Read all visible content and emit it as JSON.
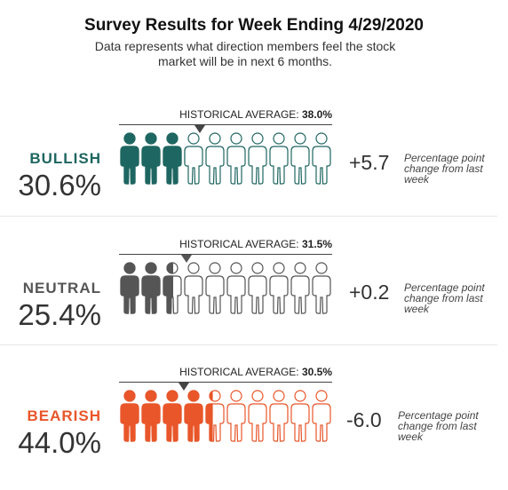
{
  "chart_data": {
    "type": "pictogram",
    "title": "Survey Results for Week Ending 4/29/2020",
    "subtitle": "Data represents what direction members feel the stock market will be in next 6 months.",
    "categories": [
      {
        "name": "BULLISH",
        "value_label": "30.6%",
        "value": 30.6,
        "historical_label": "HISTORICAL AVERAGE:",
        "historical_value_label": "38.0%",
        "historical_value": 38.0,
        "change_label": "+5.7",
        "change_value": 5.7,
        "change_note": "Percentage point change from last week",
        "color": "#1e6661"
      },
      {
        "name": "NEUTRAL",
        "value_label": "25.4%",
        "value": 25.4,
        "historical_label": "HISTORICAL AVERAGE:",
        "historical_value_label": "31.5%",
        "historical_value": 31.5,
        "change_label": "+0.2",
        "change_value": 0.2,
        "change_note": "Percentage point change from last week",
        "color": "#555555"
      },
      {
        "name": "BEARISH",
        "value_label": "44.0%",
        "value": 44.0,
        "historical_label": "HISTORICAL AVERAGE:",
        "historical_value_label": "30.5%",
        "historical_value": 30.5,
        "change_label": "-6.0",
        "change_value": -6.0,
        "change_note": "Percentage point change from last week",
        "color": "#e8562a"
      }
    ],
    "icons_per_row": 10,
    "icon": "person-icon"
  }
}
